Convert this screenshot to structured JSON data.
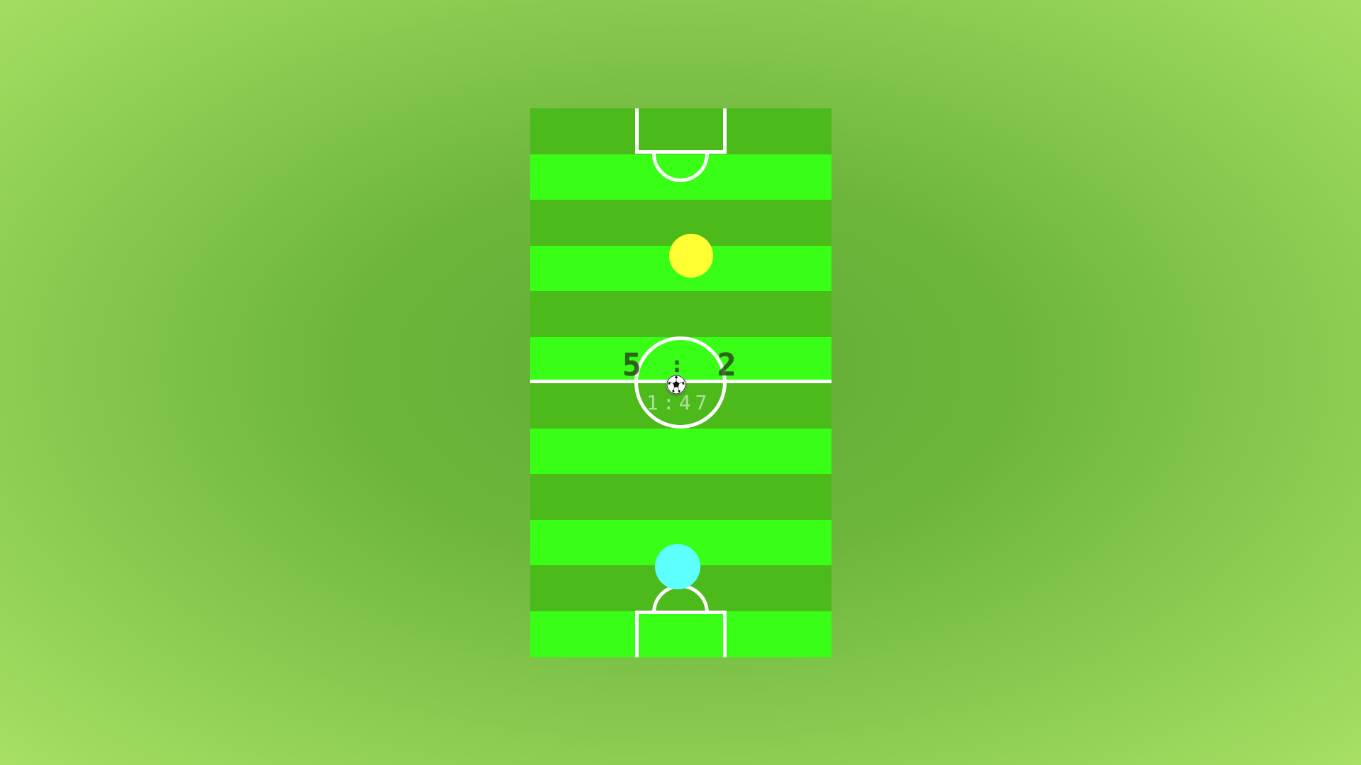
{
  "scoreboard": {
    "home_score": "5",
    "separator": ":",
    "away_score": "2"
  },
  "timer": {
    "time": "1:47"
  },
  "players": {
    "top_player_color": "#ffff33",
    "bottom_player_color": "#5effff"
  },
  "pitch": {
    "dark_stripe_color": "#4dba1c",
    "light_stripe_color": "#39ff17",
    "line_color": "#ffffff"
  },
  "ball": {
    "icon": "soccer-ball-icon"
  }
}
